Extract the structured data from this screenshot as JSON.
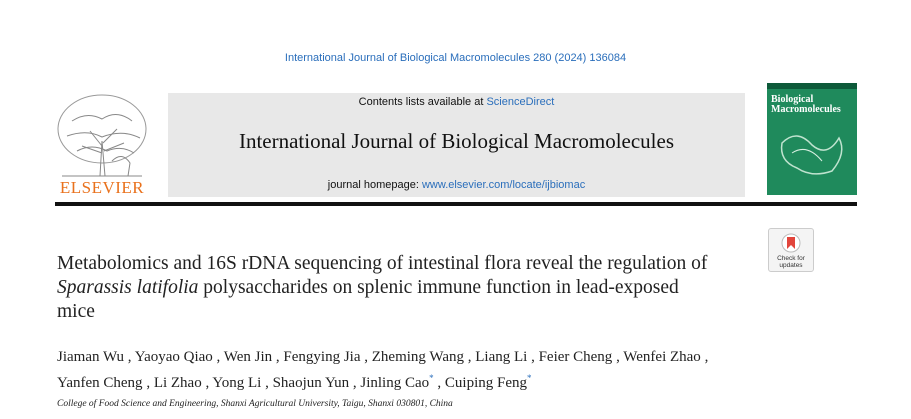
{
  "header": {
    "citation": "International Journal of Biological Macromolecules 280 (2024) 136084",
    "contents_prefix": "Contents lists available at ",
    "contents_link": "ScienceDirect",
    "journal": "International Journal of Biological Macromolecules",
    "homepage_prefix": "journal homepage: ",
    "homepage_link": "www.elsevier.com/locate/ijbiomac",
    "publisher": "ELSEVIER",
    "cover_title": "Biological Macromolecules",
    "badge": "Check for updates"
  },
  "article": {
    "title": {
      "before": "Metabolomics and 16S rDNA sequencing of intestinal flora reveal the regulation of ",
      "italic": "Sparassis latifolia",
      "after": " polysaccharides on splenic immune function in lead-exposed mice"
    },
    "separator": ",",
    "authors": [
      {
        "name": "Jiaman Wu"
      },
      {
        "name": "Yaoyao Qiao"
      },
      {
        "name": "Wen Jin"
      },
      {
        "name": "Fengying Jia"
      },
      {
        "name": "Zheming Wang"
      },
      {
        "name": "Liang Li"
      },
      {
        "name": "Feier Cheng"
      },
      {
        "name": "Wenfei Zhao"
      },
      {
        "name": "Yanfen Cheng"
      },
      {
        "name": "Li Zhao"
      },
      {
        "name": "Yong Li"
      },
      {
        "name": "Shaojun Yun"
      },
      {
        "name": "Jinling Cao",
        "mark": "*"
      },
      {
        "name": "Cuiping Feng",
        "mark": "*"
      }
    ],
    "affiliation": "College of Food Science and Engineering, Shanxi Agricultural University, Taigu, Shanxi 030801, China"
  }
}
